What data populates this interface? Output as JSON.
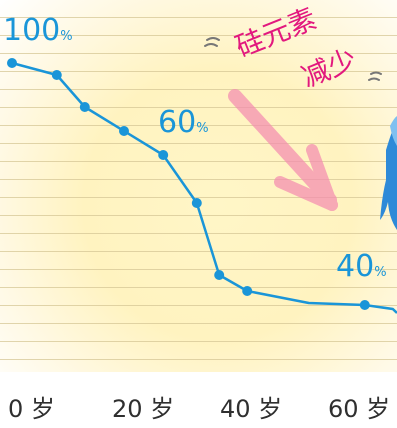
{
  "chart_data": {
    "type": "line",
    "x": [
      0,
      8,
      13,
      20,
      27,
      33,
      37,
      42,
      53,
      63,
      68
    ],
    "series": [
      {
        "values": [
          100,
          97,
          89,
          83,
          77,
          65,
          47,
          43,
          40,
          39.5,
          38.5
        ]
      }
    ],
    "data_labels": [
      {
        "num": "100",
        "pct": "%"
      },
      {
        "num": "60",
        "pct": "%"
      },
      {
        "num": "40",
        "pct": "%"
      }
    ],
    "x_tick_labels": [
      "0 岁",
      "20 岁",
      "40 岁",
      "60 岁"
    ],
    "x_ticks": [
      0,
      20,
      40,
      60
    ],
    "xlim": [
      0,
      68
    ],
    "ylim": [
      0,
      100
    ],
    "annotation": {
      "line1": "硅元素",
      "line2": "减少"
    },
    "arrow_direction": "down-right",
    "colors": {
      "line": "#1a95d8",
      "annotation": "#e2187e",
      "arrow": "#f48ab0",
      "figure": "#2e8ad8"
    },
    "grid": "ruled paper lines"
  }
}
